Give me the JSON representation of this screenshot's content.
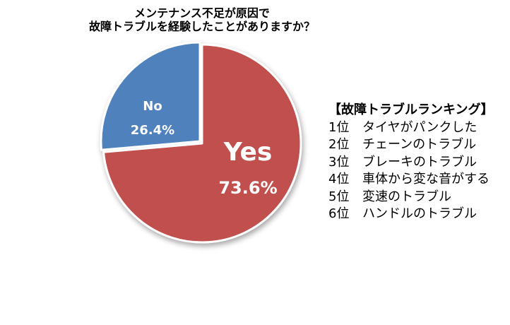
{
  "chart_data": {
    "type": "pie",
    "title": "メンテナンス不足が原因で\n故障トラブルを経験したことがありますか？",
    "title_lines": [
      "メンテナンス不足が原因で",
      "故障トラブルを経験したことがありますか？"
    ],
    "slices": [
      {
        "label": "Yes",
        "value": 73.6,
        "value_label": "73.6%",
        "color": "#C0504D"
      },
      {
        "label": "No",
        "value": 26.4,
        "value_label": "26.4%",
        "color": "#4F81BD"
      }
    ],
    "start": "12 o'clock",
    "direction": "clockwise",
    "legend": "none"
  },
  "ranking": {
    "title": "【故障トラブルランキング】",
    "items": [
      {
        "rank": "1位",
        "text": "タイヤがパンクした"
      },
      {
        "rank": "2位",
        "text": "チェーンのトラブル"
      },
      {
        "rank": "3位",
        "text": "ブレーキのトラブル"
      },
      {
        "rank": "4位",
        "text": "車体から変な音がする"
      },
      {
        "rank": "5位",
        "text": "変速のトラブル"
      },
      {
        "rank": "6位",
        "text": "ハンドルのトラブル"
      }
    ]
  }
}
